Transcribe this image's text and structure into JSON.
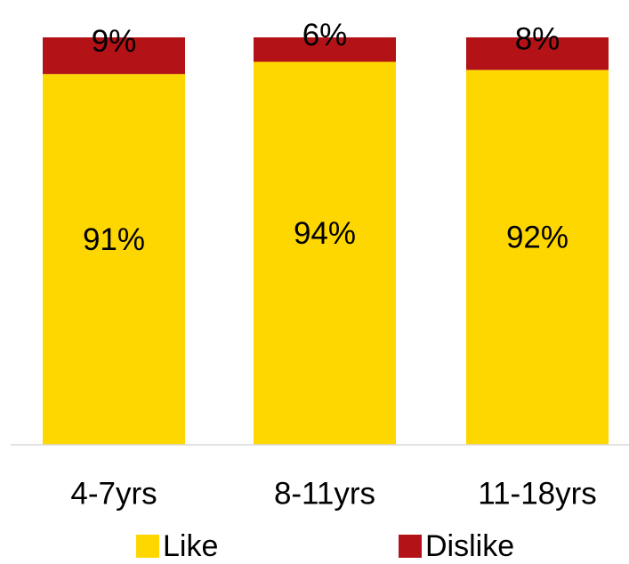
{
  "chart_data": {
    "type": "bar",
    "stacked": true,
    "categories": [
      "4-7yrs",
      "8-11yrs",
      "11-18yrs"
    ],
    "series": [
      {
        "name": "Like",
        "values": [
          91,
          94,
          92
        ],
        "labels": [
          "91%",
          "94%",
          "92%"
        ],
        "color": "#FFD700"
      },
      {
        "name": "Dislike",
        "values": [
          9,
          6,
          8
        ],
        "labels": [
          "9%",
          "6%",
          "8%"
        ],
        "color": "#B31217"
      }
    ],
    "title": "",
    "xlabel": "",
    "ylabel": "",
    "ylim": [
      0,
      100
    ],
    "grid": false,
    "legend_position": "bottom"
  }
}
